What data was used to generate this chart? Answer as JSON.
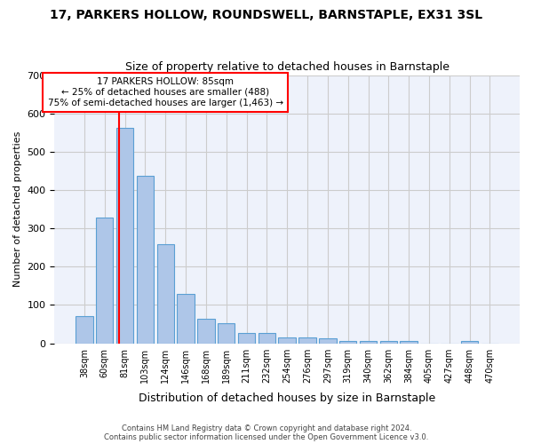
{
  "title": "17, PARKERS HOLLOW, ROUNDSWELL, BARNSTAPLE, EX31 3SL",
  "subtitle": "Size of property relative to detached houses in Barnstaple",
  "xlabel": "Distribution of detached houses by size in Barnstaple",
  "ylabel": "Number of detached properties",
  "categories": [
    "38sqm",
    "60sqm",
    "81sqm",
    "103sqm",
    "124sqm",
    "146sqm",
    "168sqm",
    "189sqm",
    "211sqm",
    "232sqm",
    "254sqm",
    "276sqm",
    "297sqm",
    "319sqm",
    "340sqm",
    "362sqm",
    "384sqm",
    "405sqm",
    "427sqm",
    "448sqm",
    "470sqm"
  ],
  "values": [
    70,
    328,
    562,
    438,
    258,
    128,
    63,
    52,
    28,
    28,
    16,
    16,
    12,
    5,
    5,
    5,
    5,
    0,
    0,
    5,
    0
  ],
  "bar_color": "#aec6e8",
  "bar_edge_color": "#5a9fd4",
  "marker_label": "17 PARKERS HOLLOW: 85sqm",
  "annotation_line1": "← 25% of detached houses are smaller (488)",
  "annotation_line2": "75% of semi-detached houses are larger (1,463) →",
  "annotation_box_color": "white",
  "annotation_box_edge": "red",
  "vline_color": "red",
  "ylim": [
    0,
    700
  ],
  "yticks": [
    0,
    100,
    200,
    300,
    400,
    500,
    600,
    700
  ],
  "background_color": "#eef2fb",
  "grid_color": "#cccccc",
  "footer_line1": "Contains HM Land Registry data © Crown copyright and database right 2024.",
  "footer_line2": "Contains public sector information licensed under the Open Government Licence v3.0."
}
